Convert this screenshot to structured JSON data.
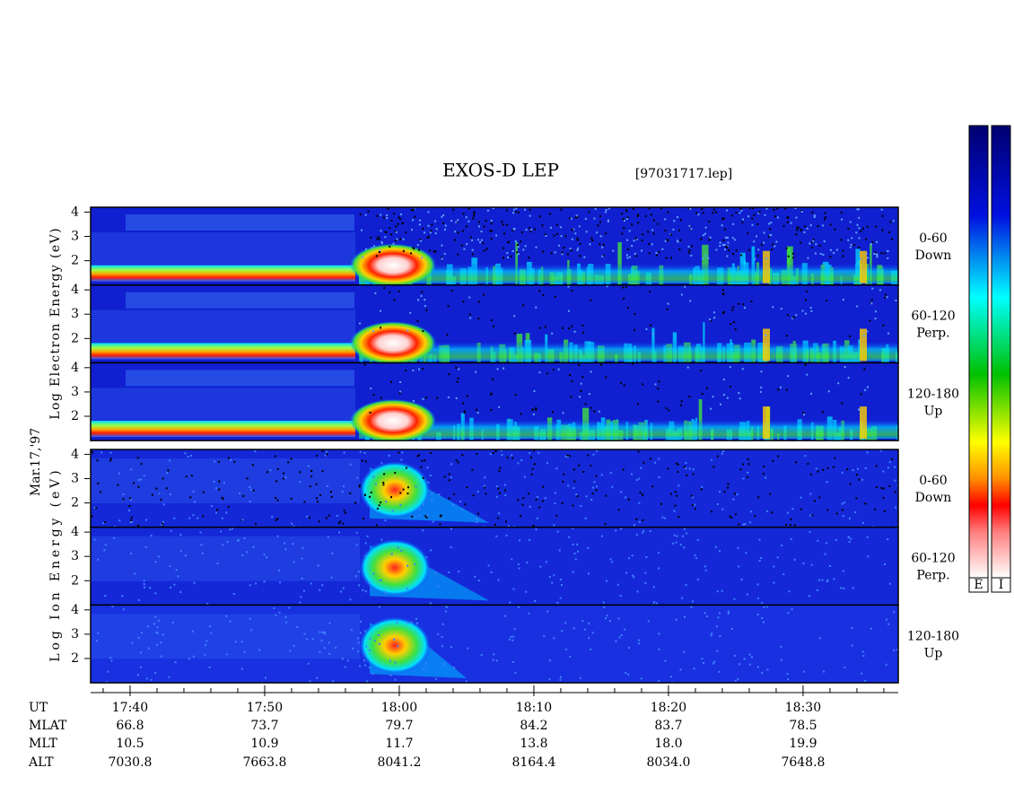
{
  "title": "EXOS-D LEP",
  "file": "[97031717.lep]",
  "date": "Mar.17,'97",
  "ylim": [
    1,
    4.2
  ],
  "xlim": [
    1057.07,
    1117.07
  ],
  "groups": [
    {
      "species": "electron",
      "ylabel": "Log Electron Energy (eV)",
      "panels": [
        {
          "label": [
            "0-60",
            "Down"
          ],
          "yticks": [
            2,
            3,
            4
          ]
        },
        {
          "label": [
            "60-120",
            "Perp."
          ],
          "yticks": [
            2,
            3,
            4
          ]
        },
        {
          "label": [
            "120-180",
            "Up"
          ],
          "yticks": [
            2,
            3,
            4
          ]
        }
      ]
    },
    {
      "species": "ion",
      "ylabel": "Log Ion Energy (eV)",
      "panels": [
        {
          "label": [
            "0-60",
            "Down"
          ],
          "yticks": [
            2,
            3,
            4
          ]
        },
        {
          "label": [
            "60-120",
            "Perp."
          ],
          "yticks": [
            2,
            3,
            4
          ]
        },
        {
          "label": [
            "120-180",
            "Up"
          ],
          "yticks": [
            2,
            3,
            4
          ]
        }
      ]
    }
  ],
  "xticks": [
    {
      "value": 1060,
      "label": "17:40"
    },
    {
      "value": 1070,
      "label": "17:50"
    },
    {
      "value": 1080,
      "label": "18:00"
    },
    {
      "value": 1090,
      "label": "18:10"
    },
    {
      "value": 1100,
      "label": "18:20"
    },
    {
      "value": 1110,
      "label": "18:30"
    }
  ],
  "xminorticks": [
    1058,
    1062,
    1064,
    1066,
    1068,
    1072,
    1074,
    1076,
    1078,
    1082,
    1084,
    1086,
    1088,
    1092,
    1094,
    1096,
    1098,
    1102,
    1104,
    1106,
    1108,
    1112,
    1114,
    1116
  ],
  "ephemeris": {
    "labels": [
      "UT",
      "MLAT",
      "MLT",
      "ALT"
    ],
    "rows": [
      [
        "66.8",
        "73.7",
        "79.7",
        "84.2",
        "83.7",
        "78.5"
      ],
      [
        "10.5",
        "10.9",
        "11.7",
        "13.8",
        "18.0",
        "19.9"
      ],
      [
        "7030.8",
        "7663.8",
        "8041.2",
        "8164.4",
        "8034.0",
        "7648.8"
      ]
    ]
  },
  "colorbar": {
    "labels": [
      "E",
      "I"
    ]
  }
}
